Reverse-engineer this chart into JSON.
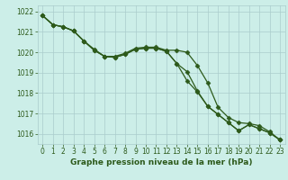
{
  "bg_color": "#cceee8",
  "grid_color": "#aacccc",
  "line_color": "#2d5a1b",
  "marker_color": "#2d5a1b",
  "xlabel": "Graphe pression niveau de la mer (hPa)",
  "xlim": [
    -0.5,
    23.5
  ],
  "ylim": [
    1015.5,
    1022.3
  ],
  "yticks": [
    1016,
    1017,
    1018,
    1019,
    1020,
    1021,
    1022
  ],
  "xticks": [
    0,
    1,
    2,
    3,
    4,
    5,
    6,
    7,
    8,
    9,
    10,
    11,
    12,
    13,
    14,
    15,
    16,
    17,
    18,
    19,
    20,
    21,
    22,
    23
  ],
  "series1": [
    1021.8,
    1021.35,
    1021.25,
    1021.05,
    1020.55,
    1020.15,
    1019.8,
    1019.8,
    1019.95,
    1020.2,
    1020.25,
    1020.25,
    1020.1,
    1020.1,
    1020.0,
    1019.35,
    1018.5,
    1017.3,
    1016.8,
    1016.55,
    1016.5,
    1016.4,
    1016.1,
    1015.7
  ],
  "series2": [
    1021.8,
    1021.35,
    1021.25,
    1021.05,
    1020.55,
    1020.1,
    1019.8,
    1019.75,
    1019.9,
    1020.15,
    1020.2,
    1020.2,
    1020.05,
    1019.45,
    1019.05,
    1018.1,
    1017.35,
    1016.95,
    1016.55,
    1016.15,
    1016.45,
    1016.25,
    1016.05,
    1015.7
  ],
  "series3": [
    1021.8,
    1021.35,
    1021.25,
    1021.05,
    1020.55,
    1020.1,
    1019.8,
    1019.75,
    1019.9,
    1020.15,
    1020.2,
    1020.2,
    1020.05,
    1019.45,
    1018.6,
    1018.05,
    1017.35,
    1016.95,
    1016.55,
    1016.15,
    1016.45,
    1016.25,
    1016.05,
    1015.7
  ],
  "xlabel_fontsize": 6.5,
  "tick_fontsize": 5.5,
  "linewidth": 0.9,
  "markersize": 2.5
}
